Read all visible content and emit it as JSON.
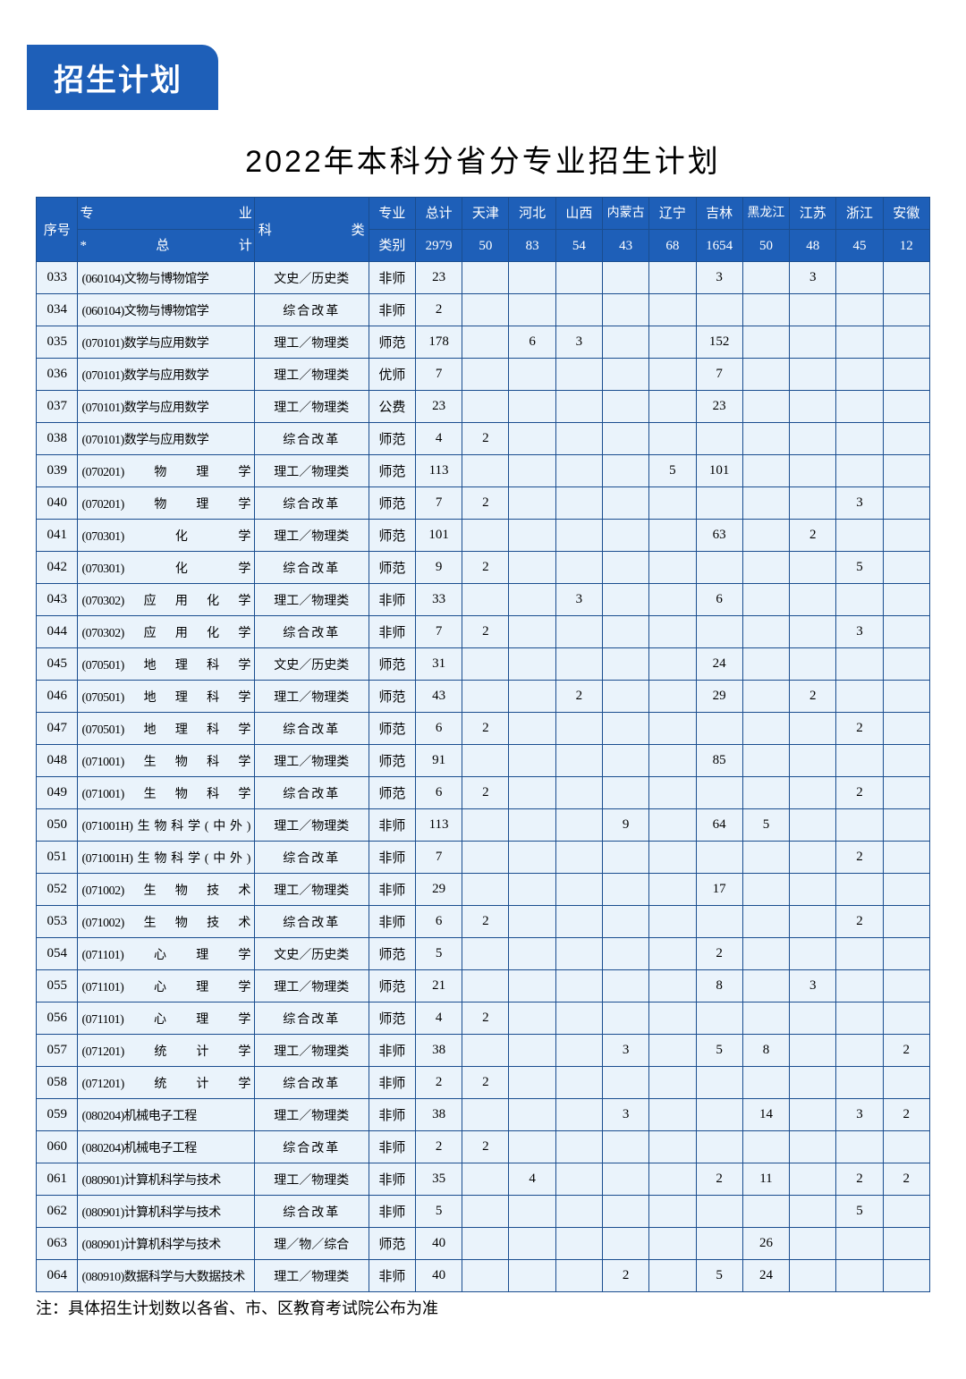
{
  "tab": "招生计划",
  "title": "2022年本科分省分专业招生计划",
  "footnote": "注：具体招生计划数以各省、市、区教育考试院公布为准",
  "header": {
    "c0": "序号",
    "c1a": "专业",
    "c1b": "*总计",
    "c2": "科类",
    "c3a": "专业",
    "c3b": "类别",
    "c4a": "总计",
    "c4b": "2979",
    "c5a": "天津",
    "c5b": "50",
    "c6a": "河北",
    "c6b": "83",
    "c7a": "山西",
    "c7b": "54",
    "c8a": "内蒙古",
    "c8b": "43",
    "c9a": "辽宁",
    "c9b": "68",
    "c10a": "吉林",
    "c10b": "1654",
    "c11a": "黑龙江",
    "c11b": "50",
    "c12a": "江苏",
    "c12b": "48",
    "c13a": "浙江",
    "c13b": "45",
    "c14a": "安徽",
    "c14b": "12"
  },
  "rows": [
    {
      "i": "033",
      "m": "(060104)文物与博物馆学",
      "c": "文史／历史类",
      "t": "非师",
      "total": "23",
      "tj": "",
      "hb": "",
      "sx": "",
      "nm": "",
      "ln": "",
      "jl": "3",
      "hlj": "",
      "js": "3",
      "zj": "",
      "ah": ""
    },
    {
      "i": "034",
      "m": "(060104)文物与博物馆学",
      "c": "综合改革",
      "t": "非师",
      "total": "2",
      "tj": "",
      "hb": "",
      "sx": "",
      "nm": "",
      "ln": "",
      "jl": "",
      "hlj": "",
      "js": "",
      "zj": "",
      "ah": ""
    },
    {
      "i": "035",
      "m": "(070101)数学与应用数学",
      "c": "理工／物理类",
      "t": "师范",
      "total": "178",
      "tj": "",
      "hb": "6",
      "sx": "3",
      "nm": "",
      "ln": "",
      "jl": "152",
      "hlj": "",
      "js": "",
      "zj": "",
      "ah": ""
    },
    {
      "i": "036",
      "m": "(070101)数学与应用数学",
      "c": "理工／物理类",
      "t": "优师",
      "total": "7",
      "tj": "",
      "hb": "",
      "sx": "",
      "nm": "",
      "ln": "",
      "jl": "7",
      "hlj": "",
      "js": "",
      "zj": "",
      "ah": ""
    },
    {
      "i": "037",
      "m": "(070101)数学与应用数学",
      "c": "理工／物理类",
      "t": "公费",
      "total": "23",
      "tj": "",
      "hb": "",
      "sx": "",
      "nm": "",
      "ln": "",
      "jl": "23",
      "hlj": "",
      "js": "",
      "zj": "",
      "ah": ""
    },
    {
      "i": "038",
      "m": "(070101)数学与应用数学",
      "c": "综合改革",
      "t": "师范",
      "total": "4",
      "tj": "2",
      "hb": "",
      "sx": "",
      "nm": "",
      "ln": "",
      "jl": "",
      "hlj": "",
      "js": "",
      "zj": "",
      "ah": ""
    },
    {
      "i": "039",
      "m": "(070201)物理学",
      "c": "理工／物理类",
      "t": "师范",
      "total": "113",
      "tj": "",
      "hb": "",
      "sx": "",
      "nm": "",
      "ln": "5",
      "jl": "101",
      "hlj": "",
      "js": "",
      "zj": "",
      "ah": ""
    },
    {
      "i": "040",
      "m": "(070201)物理学",
      "c": "综合改革",
      "t": "师范",
      "total": "7",
      "tj": "2",
      "hb": "",
      "sx": "",
      "nm": "",
      "ln": "",
      "jl": "",
      "hlj": "",
      "js": "",
      "zj": "3",
      "ah": ""
    },
    {
      "i": "041",
      "m": "(070301)化学",
      "c": "理工／物理类",
      "t": "师范",
      "total": "101",
      "tj": "",
      "hb": "",
      "sx": "",
      "nm": "",
      "ln": "",
      "jl": "63",
      "hlj": "",
      "js": "2",
      "zj": "",
      "ah": ""
    },
    {
      "i": "042",
      "m": "(070301)化学",
      "c": "综合改革",
      "t": "师范",
      "total": "9",
      "tj": "2",
      "hb": "",
      "sx": "",
      "nm": "",
      "ln": "",
      "jl": "",
      "hlj": "",
      "js": "",
      "zj": "5",
      "ah": ""
    },
    {
      "i": "043",
      "m": "(070302)应用化学",
      "c": "理工／物理类",
      "t": "非师",
      "total": "33",
      "tj": "",
      "hb": "",
      "sx": "3",
      "nm": "",
      "ln": "",
      "jl": "6",
      "hlj": "",
      "js": "",
      "zj": "",
      "ah": ""
    },
    {
      "i": "044",
      "m": "(070302)应用化学",
      "c": "综合改革",
      "t": "非师",
      "total": "7",
      "tj": "2",
      "hb": "",
      "sx": "",
      "nm": "",
      "ln": "",
      "jl": "",
      "hlj": "",
      "js": "",
      "zj": "3",
      "ah": ""
    },
    {
      "i": "045",
      "m": "(070501)地理科学",
      "c": "文史／历史类",
      "t": "师范",
      "total": "31",
      "tj": "",
      "hb": "",
      "sx": "",
      "nm": "",
      "ln": "",
      "jl": "24",
      "hlj": "",
      "js": "",
      "zj": "",
      "ah": ""
    },
    {
      "i": "046",
      "m": "(070501)地理科学",
      "c": "理工／物理类",
      "t": "师范",
      "total": "43",
      "tj": "",
      "hb": "",
      "sx": "2",
      "nm": "",
      "ln": "",
      "jl": "29",
      "hlj": "",
      "js": "2",
      "zj": "",
      "ah": ""
    },
    {
      "i": "047",
      "m": "(070501)地理科学",
      "c": "综合改革",
      "t": "师范",
      "total": "6",
      "tj": "2",
      "hb": "",
      "sx": "",
      "nm": "",
      "ln": "",
      "jl": "",
      "hlj": "",
      "js": "",
      "zj": "2",
      "ah": ""
    },
    {
      "i": "048",
      "m": "(071001)生物科学",
      "c": "理工／物理类",
      "t": "师范",
      "total": "91",
      "tj": "",
      "hb": "",
      "sx": "",
      "nm": "",
      "ln": "",
      "jl": "85",
      "hlj": "",
      "js": "",
      "zj": "",
      "ah": ""
    },
    {
      "i": "049",
      "m": "(071001)生物科学",
      "c": "综合改革",
      "t": "师范",
      "total": "6",
      "tj": "2",
      "hb": "",
      "sx": "",
      "nm": "",
      "ln": "",
      "jl": "",
      "hlj": "",
      "js": "",
      "zj": "2",
      "ah": ""
    },
    {
      "i": "050",
      "m": "(071001H)生物科学(中外)",
      "c": "理工／物理类",
      "t": "非师",
      "total": "113",
      "tj": "",
      "hb": "",
      "sx": "",
      "nm": "9",
      "ln": "",
      "jl": "64",
      "hlj": "5",
      "js": "",
      "zj": "",
      "ah": ""
    },
    {
      "i": "051",
      "m": "(071001H)生物科学(中外)",
      "c": "综合改革",
      "t": "非师",
      "total": "7",
      "tj": "",
      "hb": "",
      "sx": "",
      "nm": "",
      "ln": "",
      "jl": "",
      "hlj": "",
      "js": "",
      "zj": "2",
      "ah": ""
    },
    {
      "i": "052",
      "m": "(071002)生物技术",
      "c": "理工／物理类",
      "t": "非师",
      "total": "29",
      "tj": "",
      "hb": "",
      "sx": "",
      "nm": "",
      "ln": "",
      "jl": "17",
      "hlj": "",
      "js": "",
      "zj": "",
      "ah": ""
    },
    {
      "i": "053",
      "m": "(071002)生物技术",
      "c": "综合改革",
      "t": "非师",
      "total": "6",
      "tj": "2",
      "hb": "",
      "sx": "",
      "nm": "",
      "ln": "",
      "jl": "",
      "hlj": "",
      "js": "",
      "zj": "2",
      "ah": ""
    },
    {
      "i": "054",
      "m": "(071101)心理学",
      "c": "文史／历史类",
      "t": "师范",
      "total": "5",
      "tj": "",
      "hb": "",
      "sx": "",
      "nm": "",
      "ln": "",
      "jl": "2",
      "hlj": "",
      "js": "",
      "zj": "",
      "ah": ""
    },
    {
      "i": "055",
      "m": "(071101)心理学",
      "c": "理工／物理类",
      "t": "师范",
      "total": "21",
      "tj": "",
      "hb": "",
      "sx": "",
      "nm": "",
      "ln": "",
      "jl": "8",
      "hlj": "",
      "js": "3",
      "zj": "",
      "ah": ""
    },
    {
      "i": "056",
      "m": "(071101)心理学",
      "c": "综合改革",
      "t": "师范",
      "total": "4",
      "tj": "2",
      "hb": "",
      "sx": "",
      "nm": "",
      "ln": "",
      "jl": "",
      "hlj": "",
      "js": "",
      "zj": "",
      "ah": ""
    },
    {
      "i": "057",
      "m": "(071201)统计学",
      "c": "理工／物理类",
      "t": "非师",
      "total": "38",
      "tj": "",
      "hb": "",
      "sx": "",
      "nm": "3",
      "ln": "",
      "jl": "5",
      "hlj": "8",
      "js": "",
      "zj": "",
      "ah": "2"
    },
    {
      "i": "058",
      "m": "(071201)统计学",
      "c": "综合改革",
      "t": "非师",
      "total": "2",
      "tj": "2",
      "hb": "",
      "sx": "",
      "nm": "",
      "ln": "",
      "jl": "",
      "hlj": "",
      "js": "",
      "zj": "",
      "ah": ""
    },
    {
      "i": "059",
      "m": "(080204)机械电子工程",
      "c": "理工／物理类",
      "t": "非师",
      "total": "38",
      "tj": "",
      "hb": "",
      "sx": "",
      "nm": "3",
      "ln": "",
      "jl": "",
      "hlj": "14",
      "js": "",
      "zj": "3",
      "ah": "2"
    },
    {
      "i": "060",
      "m": "(080204)机械电子工程",
      "c": "综合改革",
      "t": "非师",
      "total": "2",
      "tj": "2",
      "hb": "",
      "sx": "",
      "nm": "",
      "ln": "",
      "jl": "",
      "hlj": "",
      "js": "",
      "zj": "",
      "ah": ""
    },
    {
      "i": "061",
      "m": "(080901)计算机科学与技术",
      "c": "理工／物理类",
      "t": "非师",
      "total": "35",
      "tj": "",
      "hb": "4",
      "sx": "",
      "nm": "",
      "ln": "",
      "jl": "2",
      "hlj": "11",
      "js": "",
      "zj": "2",
      "ah": "2"
    },
    {
      "i": "062",
      "m": "(080901)计算机科学与技术",
      "c": "综合改革",
      "t": "非师",
      "total": "5",
      "tj": "",
      "hb": "",
      "sx": "",
      "nm": "",
      "ln": "",
      "jl": "",
      "hlj": "",
      "js": "",
      "zj": "5",
      "ah": ""
    },
    {
      "i": "063",
      "m": "(080901)计算机科学与技术",
      "c": "理／物／综合",
      "t": "师范",
      "total": "40",
      "tj": "",
      "hb": "",
      "sx": "",
      "nm": "",
      "ln": "",
      "jl": "",
      "hlj": "26",
      "js": "",
      "zj": "",
      "ah": ""
    },
    {
      "i": "064",
      "m": "(080910)数据科学与大数据技术",
      "c": "理工／物理类",
      "t": "非师",
      "total": "40",
      "tj": "",
      "hb": "",
      "sx": "",
      "nm": "2",
      "ln": "",
      "jl": "5",
      "hlj": "24",
      "js": "",
      "zj": "",
      "ah": ""
    }
  ]
}
